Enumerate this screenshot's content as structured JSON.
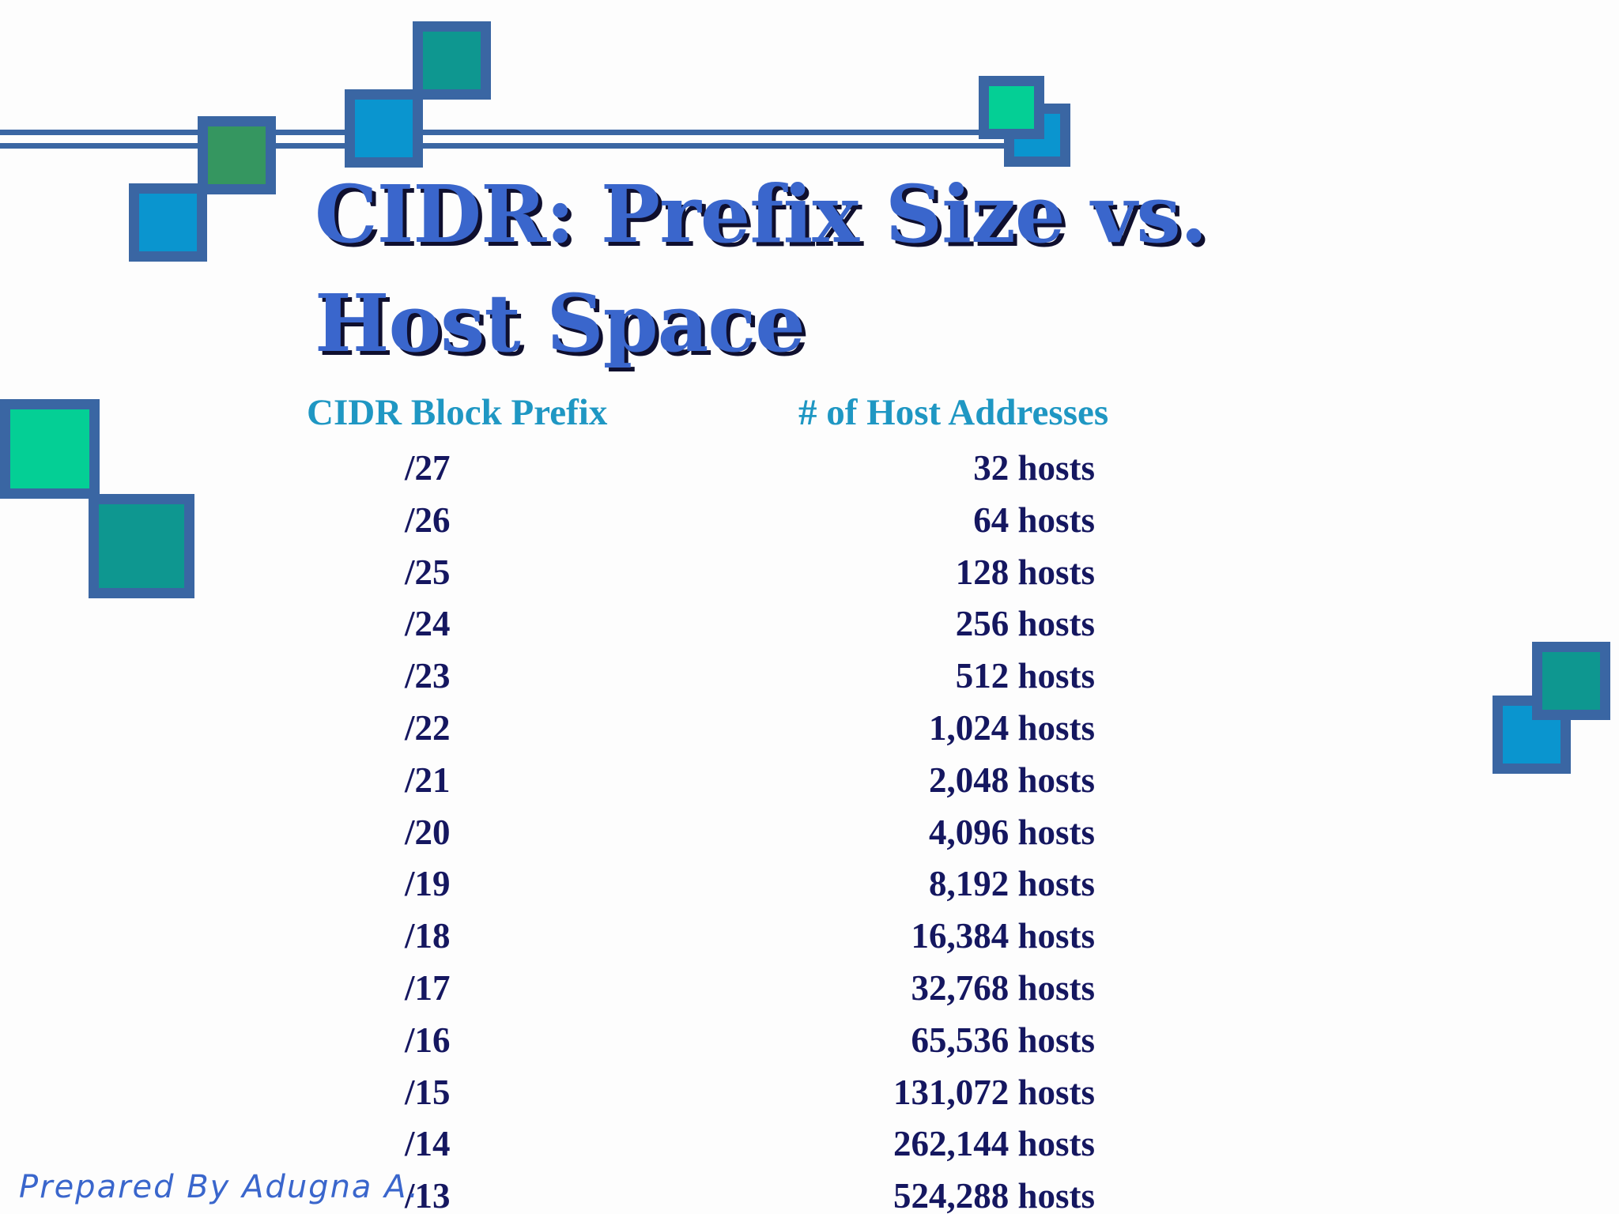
{
  "slide": {
    "title": "CIDR:  Prefix Size vs. Host Space",
    "columns": {
      "prefix_header": "CIDR Block Prefix",
      "hosts_header": "# of Host Addresses"
    },
    "rows": [
      {
        "prefix": "/27",
        "hosts": "32 hosts"
      },
      {
        "prefix": "/26",
        "hosts": "64 hosts"
      },
      {
        "prefix": "/25",
        "hosts": "128 hosts"
      },
      {
        "prefix": "/24",
        "hosts": "256 hosts"
      },
      {
        "prefix": "/23",
        "hosts": "512 hosts"
      },
      {
        "prefix": "/22",
        "hosts": "1,024 hosts"
      },
      {
        "prefix": "/21",
        "hosts": "2,048 hosts"
      },
      {
        "prefix": "/20",
        "hosts": "4,096 hosts"
      },
      {
        "prefix": "/19",
        "hosts": "8,192 hosts"
      },
      {
        "prefix": "/18",
        "hosts": "16,384 hosts"
      },
      {
        "prefix": "/17",
        "hosts": "32,768 hosts"
      },
      {
        "prefix": "/16",
        "hosts": "65,536 hosts"
      },
      {
        "prefix": "/15",
        "hosts": "131,072 hosts"
      },
      {
        "prefix": "/14",
        "hosts": "262,144 hosts"
      },
      {
        "prefix": "/13",
        "hosts": "524,288 hosts"
      }
    ],
    "footer": "Prepared By Adugna A."
  },
  "colors": {
    "background": "#fdfdfd",
    "title": "#3a66cc",
    "title_shadow": "#0f0f2e",
    "header_text": "#1f97c3",
    "body_text": "#151760",
    "frame": "#3a66a3",
    "square_teal": "#0e9790",
    "square_blue": "#0a95cf",
    "square_green": "#359660",
    "square_mint": "#04cf95"
  }
}
